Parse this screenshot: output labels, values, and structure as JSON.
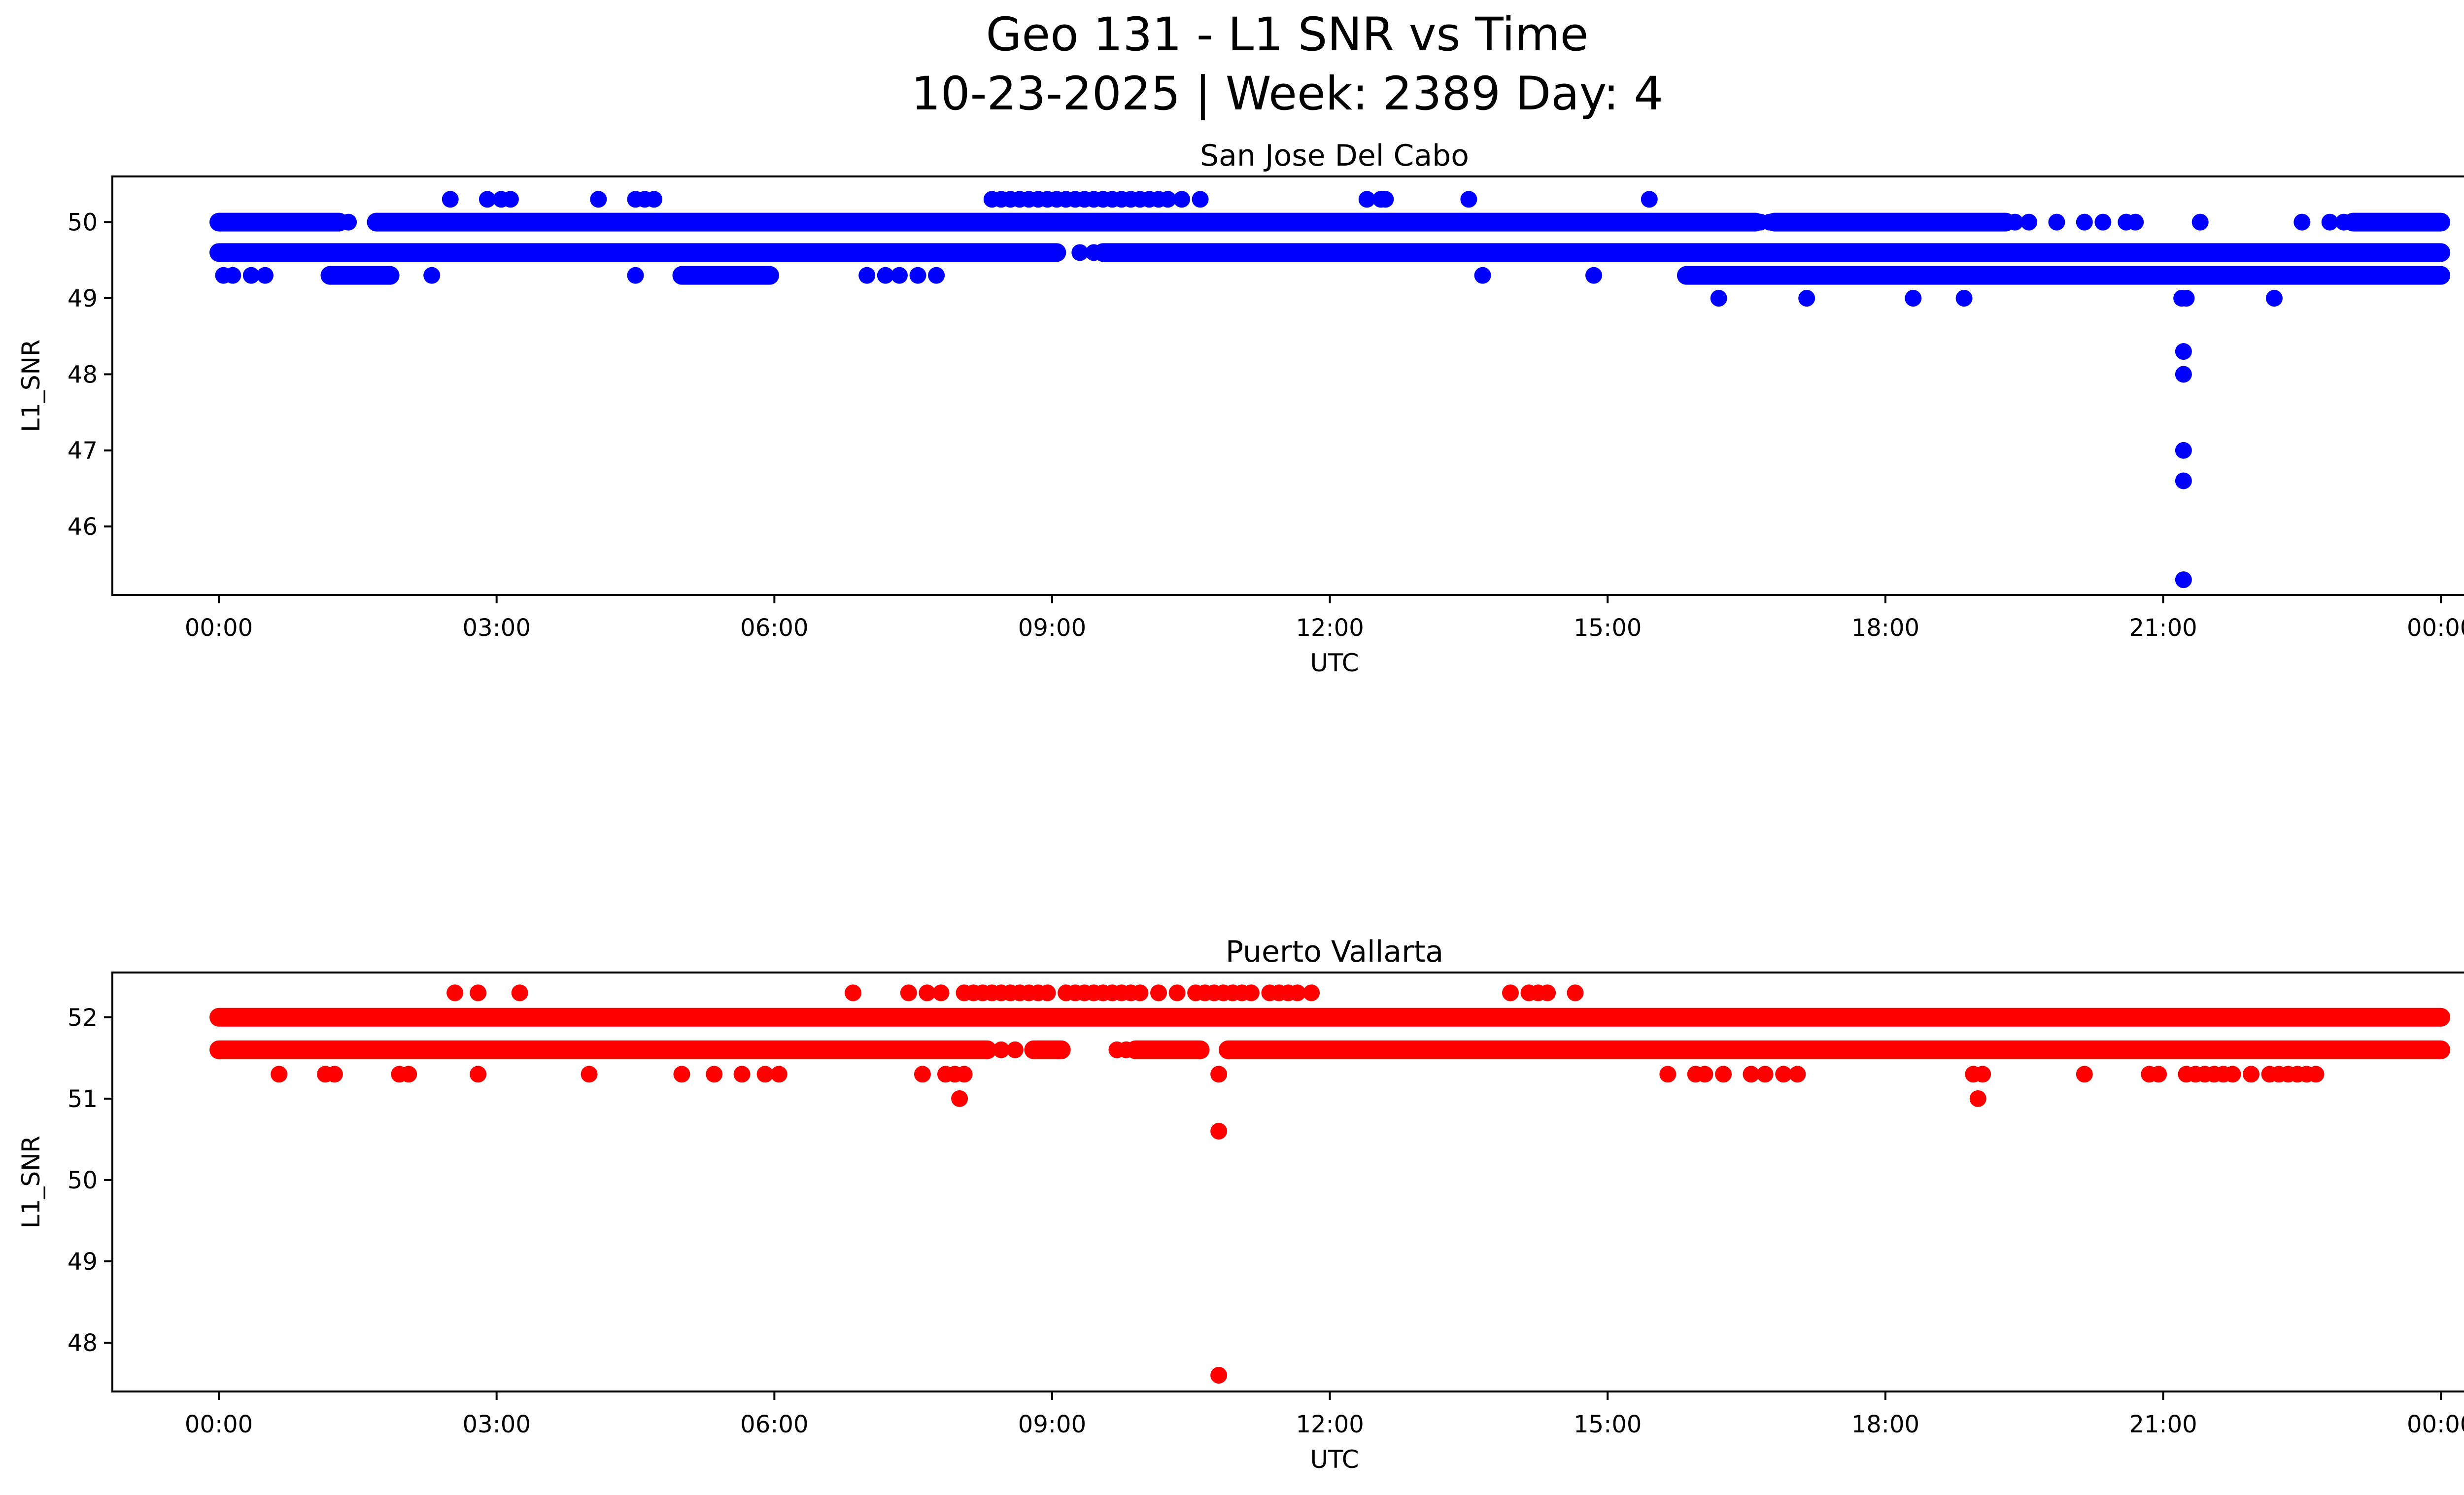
{
  "figure": {
    "title_line1": "Geo 131 - L1 SNR vs Time",
    "title_line2": "10-23-2025 | Week: 2389 Day: 4"
  },
  "chart_data": [
    {
      "type": "scatter",
      "title": "San Jose Del Cabo",
      "xlabel": "UTC",
      "ylabel": "L1_SNR",
      "color": "#0000ff",
      "xlim_hours": [
        -1.15,
        25.25
      ],
      "ylim": [
        45.1,
        50.6
      ],
      "x_ticks": [
        0,
        3,
        6,
        9,
        12,
        15,
        18,
        21,
        24
      ],
      "x_tick_labels": [
        "00:00",
        "03:00",
        "06:00",
        "09:00",
        "12:00",
        "15:00",
        "18:00",
        "21:00",
        "00:00"
      ],
      "y_ticks": [
        46,
        47,
        48,
        49,
        50
      ],
      "y_tick_labels": [
        "46",
        "47",
        "48",
        "49",
        "50"
      ],
      "bands": [
        {
          "y": 50.0,
          "segments": [
            [
              0.0,
              1.3
            ],
            [
              1.7,
              16.6
            ],
            [
              16.8,
              19.3
            ],
            [
              23.05,
              24.0
            ]
          ]
        },
        {
          "y": 49.6,
          "segments": [
            [
              0.0,
              9.05
            ],
            [
              9.55,
              24.0
            ]
          ]
        },
        {
          "y": 49.3,
          "segments": [
            [
              1.2,
              1.85
            ],
            [
              5.0,
              5.95
            ],
            [
              15.85,
              24.0
            ]
          ]
        }
      ],
      "points": [
        {
          "y": 50.0,
          "x": [
            1.4,
            16.65,
            16.75,
            19.4,
            19.55,
            19.85,
            20.15,
            20.35,
            20.6,
            20.7,
            21.4,
            22.5,
            22.8,
            22.95
          ]
        },
        {
          "y": 50.3,
          "x": [
            2.5,
            2.9,
            3.05,
            3.15,
            4.1,
            4.5,
            4.6,
            4.7,
            8.35,
            8.45,
            8.55,
            8.65,
            8.75,
            8.85,
            8.95,
            9.05,
            9.15,
            9.25,
            9.35,
            9.45,
            9.55,
            9.65,
            9.75,
            9.85,
            9.95,
            10.05,
            10.15,
            10.25,
            10.4,
            10.6,
            12.4,
            12.55,
            12.6,
            13.5,
            15.45
          ]
        },
        {
          "y": 49.6,
          "x": [
            9.3,
            9.45
          ]
        },
        {
          "y": 49.3,
          "x": [
            0.05,
            0.15,
            0.35,
            0.5,
            2.3,
            4.5,
            7.0,
            7.2,
            7.35,
            7.55,
            7.75,
            13.65,
            14.85
          ]
        },
        {
          "y": 49.0,
          "x": [
            16.2,
            17.15,
            18.3,
            18.85,
            21.2,
            21.25,
            22.2
          ]
        },
        {
          "y": 48.3,
          "x": [
            21.22
          ]
        },
        {
          "y": 48.0,
          "x": [
            21.22
          ]
        },
        {
          "y": 47.0,
          "x": [
            21.22
          ]
        },
        {
          "y": 46.6,
          "x": [
            21.22
          ]
        },
        {
          "y": 45.3,
          "x": [
            21.22
          ]
        }
      ]
    },
    {
      "type": "scatter",
      "title": "Puerto Vallarta",
      "xlabel": "UTC",
      "ylabel": "L1_SNR",
      "color": "#ff0000",
      "xlim_hours": [
        -1.15,
        25.25
      ],
      "ylim": [
        47.4,
        52.55
      ],
      "x_ticks": [
        0,
        3,
        6,
        9,
        12,
        15,
        18,
        21,
        24
      ],
      "x_tick_labels": [
        "00:00",
        "03:00",
        "06:00",
        "09:00",
        "12:00",
        "15:00",
        "18:00",
        "21:00",
        "00:00"
      ],
      "y_ticks": [
        48,
        49,
        50,
        51,
        52
      ],
      "y_tick_labels": [
        "48",
        "49",
        "50",
        "51",
        "52"
      ],
      "bands": [
        {
          "y": 52.0,
          "segments": [
            [
              0.0,
              24.0
            ]
          ]
        },
        {
          "y": 51.6,
          "segments": [
            [
              0.0,
              8.3
            ],
            [
              8.8,
              9.1
            ],
            [
              9.9,
              10.6
            ],
            [
              10.9,
              24.0
            ]
          ]
        }
      ],
      "points": [
        {
          "y": 52.3,
          "x": [
            2.55,
            2.8,
            3.25,
            6.85,
            7.45,
            7.65,
            7.8,
            8.05,
            8.15,
            8.25,
            8.35,
            8.45,
            8.55,
            8.65,
            8.75,
            8.85,
            8.95,
            9.15,
            9.25,
            9.35,
            9.45,
            9.55,
            9.65,
            9.75,
            9.85,
            9.95,
            10.15,
            10.35,
            10.55,
            10.65,
            10.75,
            10.85,
            10.95,
            11.05,
            11.15,
            11.35,
            11.45,
            11.55,
            11.65,
            11.8,
            13.95,
            14.15,
            14.25,
            14.35,
            14.65
          ]
        },
        {
          "y": 51.6,
          "x": [
            8.45,
            8.6,
            9.7,
            9.8
          ]
        },
        {
          "y": 51.3,
          "x": [
            0.65,
            1.15,
            1.25,
            1.95,
            2.05,
            2.8,
            4.0,
            5.0,
            5.35,
            5.65,
            5.9,
            6.05,
            7.6,
            7.85,
            7.95,
            8.05,
            10.8,
            15.65,
            15.95,
            16.05,
            16.25,
            16.55,
            16.7,
            16.9,
            17.05,
            18.95,
            19.05,
            20.15,
            20.85,
            20.95,
            21.25,
            21.35,
            21.45,
            21.55,
            21.65,
            21.75,
            21.95,
            22.15,
            22.25,
            22.35,
            22.45,
            22.55,
            22.65
          ]
        },
        {
          "y": 51.0,
          "x": [
            8.0,
            19.0
          ]
        },
        {
          "y": 50.6,
          "x": [
            10.8
          ]
        },
        {
          "y": 47.6,
          "x": [
            10.8
          ]
        }
      ]
    }
  ]
}
